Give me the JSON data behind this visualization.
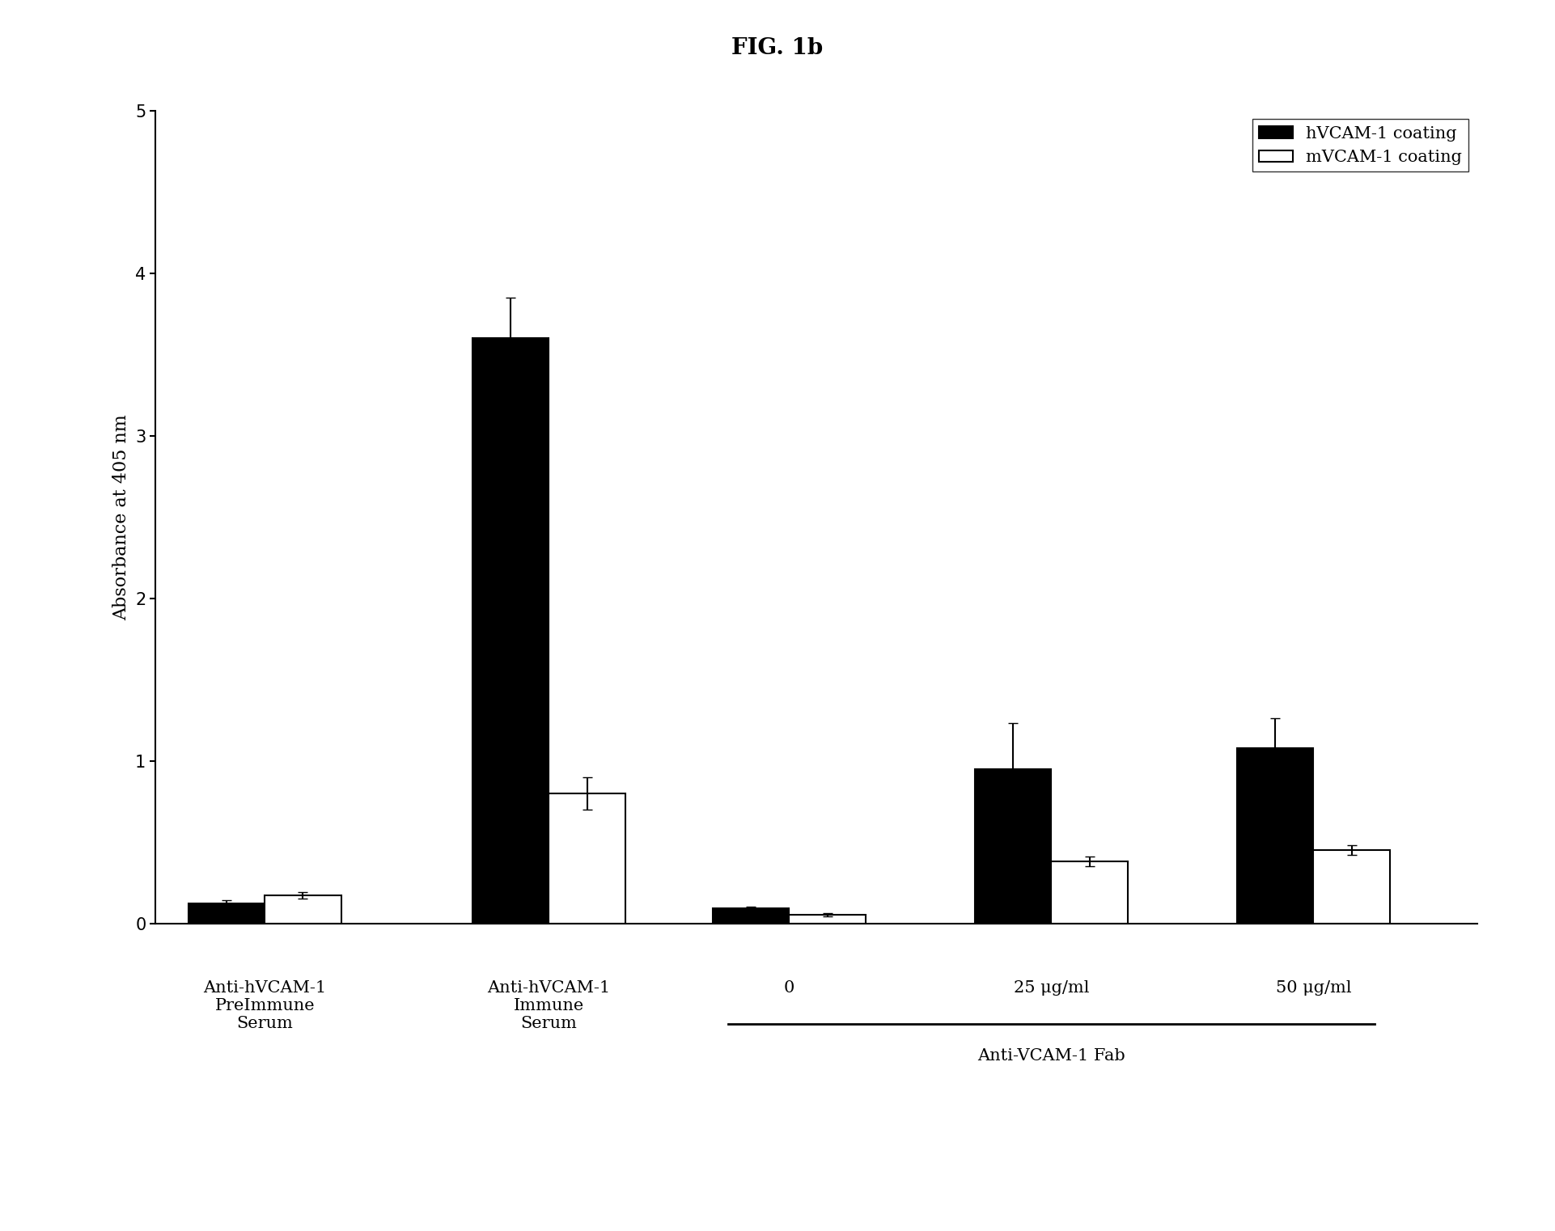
{
  "title": "FIG. 1b",
  "ylabel": "Absorbance at 405 nm",
  "ylim": [
    0,
    5
  ],
  "yticks": [
    0,
    1,
    2,
    3,
    4,
    5
  ],
  "groups": [
    {
      "label": "Anti-hVCAM-1\nPreImmune\nSerum",
      "hvcam": 0.12,
      "mvcam": 0.17,
      "hvcam_err": 0.02,
      "mvcam_err": 0.02
    },
    {
      "label": "Anti-hVCAM-1\nImmune\nSerum",
      "hvcam": 3.6,
      "mvcam": 0.8,
      "hvcam_err": 0.25,
      "mvcam_err": 0.1
    },
    {
      "label": "0",
      "hvcam": 0.09,
      "mvcam": 0.05,
      "hvcam_err": 0.01,
      "mvcam_err": 0.01
    },
    {
      "label": "25 μg/ml",
      "hvcam": 0.95,
      "mvcam": 0.38,
      "hvcam_err": 0.28,
      "mvcam_err": 0.03
    },
    {
      "label": "50 μg/ml",
      "hvcam": 1.08,
      "mvcam": 0.45,
      "hvcam_err": 0.18,
      "mvcam_err": 0.03
    }
  ],
  "legend_labels": [
    "hVCAM-1 coating",
    "mVCAM-1 coating"
  ],
  "hvcam_color": "#000000",
  "mvcam_color": "#ffffff",
  "bar_edge_color": "#000000",
  "bar_width": 0.35,
  "fab_label": "Anti-VCAM-1 Fab",
  "background_color": "#ffffff",
  "title_fontsize": 20,
  "label_fontsize": 16,
  "tick_fontsize": 15,
  "legend_fontsize": 15,
  "group_centers": [
    0.6,
    1.9,
    3.0,
    4.2,
    5.4
  ]
}
